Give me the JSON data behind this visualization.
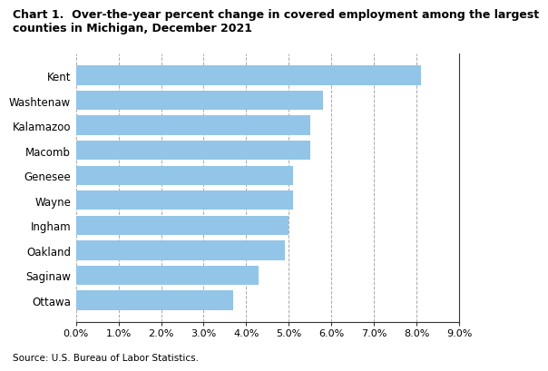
{
  "title_line1": "Chart 1.  Over-the-year percent change in covered employment among the largest",
  "title_line2": "counties in Michigan, December 2021",
  "categories": [
    "Ottawa",
    "Saginaw",
    "Oakland",
    "Ingham",
    "Wayne",
    "Genesee",
    "Macomb",
    "Kalamazoo",
    "Washtenaw",
    "Kent"
  ],
  "values": [
    0.037,
    0.043,
    0.049,
    0.05,
    0.051,
    0.051,
    0.055,
    0.055,
    0.058,
    0.081
  ],
  "bar_color": "#92C5E8",
  "xlim": [
    0.0,
    0.09
  ],
  "xticks": [
    0.0,
    0.01,
    0.02,
    0.03,
    0.04,
    0.05,
    0.06,
    0.07,
    0.08,
    0.09
  ],
  "source": "Source: U.S. Bureau of Labor Statistics.",
  "grid_color": "#aaaaaa",
  "bar_height": 0.78,
  "title_fontsize": 9.0,
  "label_fontsize": 8.5,
  "tick_fontsize": 8.0,
  "source_fontsize": 7.5
}
